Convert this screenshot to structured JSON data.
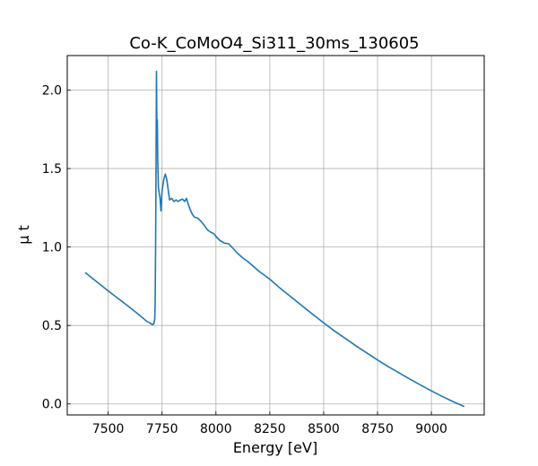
{
  "chart_data": {
    "type": "line",
    "title": "Co-K_CoMoO4_Si311_30ms_130605",
    "xlabel": "Energy [eV]",
    "ylabel": "μ t",
    "xlim": [
      7310,
      9245
    ],
    "ylim": [
      -0.07,
      2.22
    ],
    "xticks": [
      7500,
      7750,
      8000,
      8250,
      8500,
      8750,
      9000
    ],
    "yticks": [
      0.0,
      0.5,
      1.0,
      1.5,
      2.0
    ],
    "grid": true,
    "tick_direction": "in",
    "series": [
      {
        "color": "#1f77b4",
        "x": [
          7395,
          7450,
          7500,
          7550,
          7600,
          7650,
          7680,
          7695,
          7705,
          7712,
          7716,
          7718,
          7720,
          7722,
          7724,
          7726,
          7728,
          7730,
          7733,
          7736,
          7740,
          7745,
          7750,
          7758,
          7765,
          7772,
          7778,
          7785,
          7795,
          7805,
          7815,
          7825,
          7835,
          7845,
          7855,
          7863,
          7870,
          7880,
          7890,
          7900,
          7915,
          7930,
          7945,
          7960,
          7975,
          7990,
          8005,
          8020,
          8040,
          8060,
          8080,
          8100,
          8125,
          8150,
          8175,
          8200,
          8250,
          8300,
          8350,
          8400,
          8450,
          8500,
          8550,
          8600,
          8650,
          8700,
          8750,
          8800,
          8850,
          8900,
          8950,
          9000,
          9050,
          9100,
          9150
        ],
        "y": [
          0.835,
          0.775,
          0.72,
          0.668,
          0.615,
          0.56,
          0.525,
          0.515,
          0.505,
          0.51,
          0.54,
          0.65,
          1.0,
          1.5,
          2.12,
          1.75,
          1.81,
          1.55,
          1.38,
          1.35,
          1.32,
          1.23,
          1.36,
          1.43,
          1.465,
          1.43,
          1.37,
          1.3,
          1.31,
          1.29,
          1.3,
          1.29,
          1.3,
          1.305,
          1.29,
          1.31,
          1.28,
          1.24,
          1.21,
          1.19,
          1.185,
          1.165,
          1.14,
          1.11,
          1.095,
          1.085,
          1.06,
          1.04,
          1.025,
          1.02,
          0.99,
          0.96,
          0.93,
          0.905,
          0.875,
          0.845,
          0.795,
          0.735,
          0.68,
          0.625,
          0.57,
          0.517,
          0.465,
          0.418,
          0.37,
          0.325,
          0.28,
          0.237,
          0.198,
          0.158,
          0.12,
          0.083,
          0.048,
          0.015,
          -0.015
        ]
      }
    ]
  }
}
